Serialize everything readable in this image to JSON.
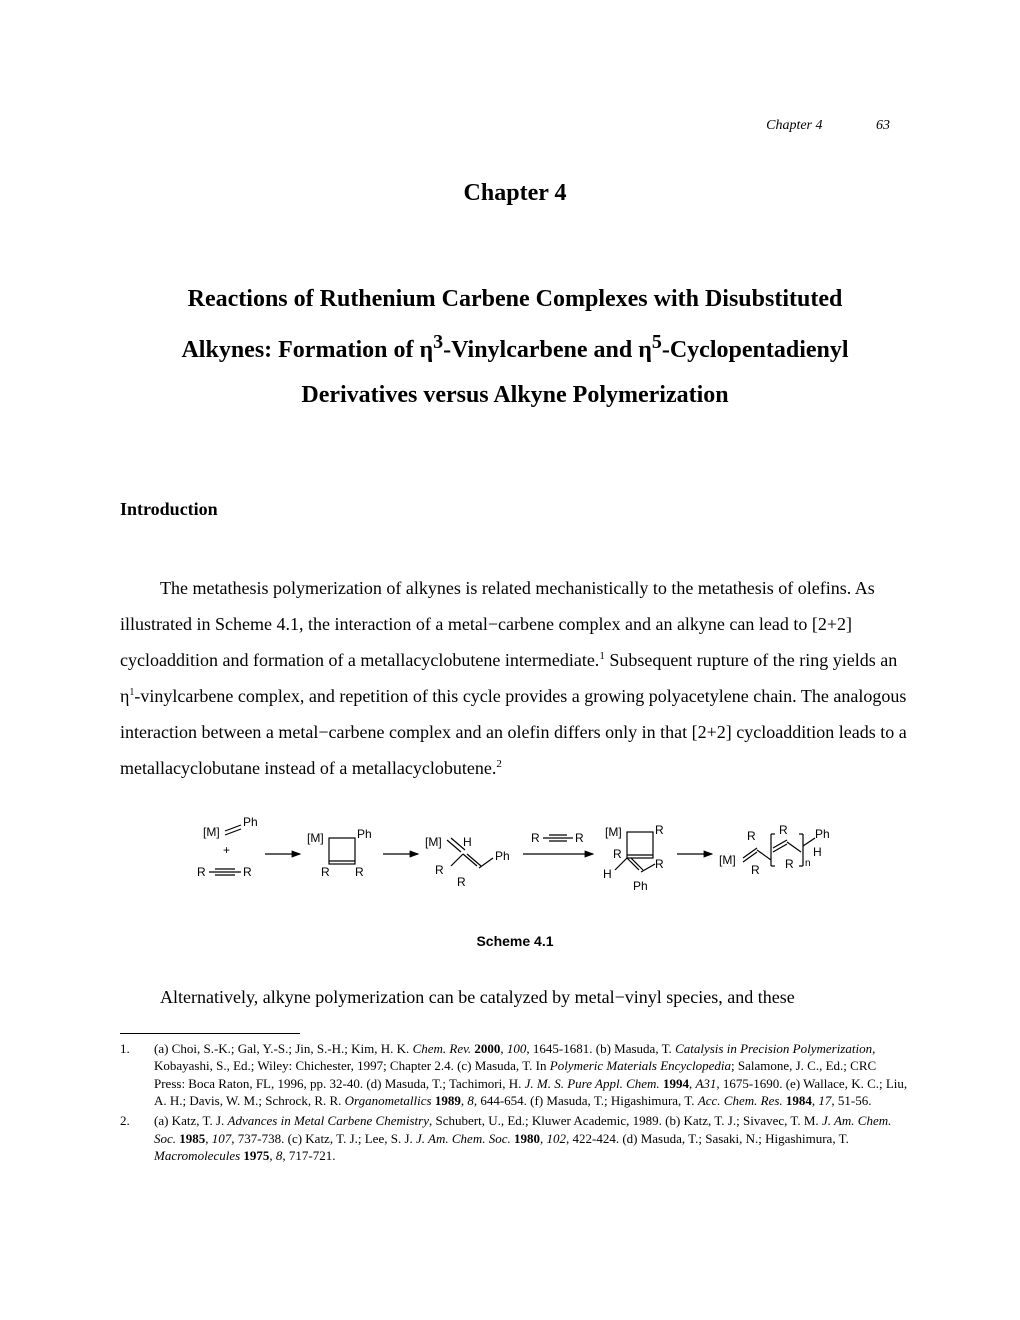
{
  "header": {
    "chapter_label": "Chapter 4",
    "page_number": "63"
  },
  "chapter_heading": "Chapter 4",
  "title": {
    "line1": "Reactions of Ruthenium Carbene Complexes with Disubstituted",
    "line2_pre": "Alkynes: Formation of ",
    "line2_eta3": "η",
    "line2_sup3": "3",
    "line2_mid": "-Vinylcarbene and ",
    "line2_eta5": "η",
    "line2_sup5": "5",
    "line2_post": "-Cyclopentadienyl",
    "line3": "Derivatives versus Alkyne Polymerization"
  },
  "section_heading": "Introduction",
  "para1": {
    "t1": "The metathesis polymerization of alkynes is related mechanistically to the metathesis of olefins.  As illustrated in Scheme 4.1, the interaction of a metal−carbene complex and an alkyne can lead to [2+2] cycloaddition and formation of a metallacyclobutene intermediate.",
    "sup1": "1",
    "t2": "  Subsequent rupture of the ring yields an η",
    "sup_eta": "1",
    "t3": "-vinylcarbene complex, and repetition of this cycle provides a growing polyacetylene chain.  The analogous interaction between a metal−carbene complex and an olefin differs only in that [2+2] cycloaddition leads to a metallacyclobutane instead of a metallacyclobutene.",
    "sup2": "2"
  },
  "scheme": {
    "label": "Scheme 4.1",
    "labels": {
      "M": "[M]",
      "Ph": "Ph",
      "R": "R",
      "H": "H",
      "plus": "+",
      "n": "n"
    },
    "style": {
      "font_family": "Arial, Helvetica, sans-serif",
      "font_size": 12,
      "stroke": "#000000",
      "stroke_width": 1.2
    }
  },
  "para2": "Alternatively, alkyne polymerization can be catalyzed by metal−vinyl species, and these",
  "footnotes": {
    "fn1": {
      "num": "1.",
      "parts": [
        {
          "text": "(a) Choi, S.-K.; Gal, Y.-S.; Jin, S.-H.; Kim, H. K.  "
        },
        {
          "text": "Chem. Rev.",
          "ital": true
        },
        {
          "text": " "
        },
        {
          "text": "2000",
          "bold": true
        },
        {
          "text": ", "
        },
        {
          "text": "100",
          "ital": true
        },
        {
          "text": ", 1645-1681.  (b) Masuda, T.  "
        },
        {
          "text": "Catalysis in Precision Polymerization",
          "ital": true
        },
        {
          "text": ", Kobayashi, S., Ed.; Wiley: Chichester, 1997; Chapter 2.4.  (c) Masuda, T.  In "
        },
        {
          "text": "Polymeric Materials Encyclopedia",
          "ital": true
        },
        {
          "text": "; Salamone, J. C., Ed.; CRC Press: Boca Raton, FL, 1996, pp. 32-40.  (d) Masuda, T.; Tachimori, H.  "
        },
        {
          "text": "J. M. S. Pure Appl. Chem.",
          "ital": true
        },
        {
          "text": " "
        },
        {
          "text": "1994",
          "bold": true
        },
        {
          "text": ", "
        },
        {
          "text": "A31",
          "ital": true
        },
        {
          "text": ", 1675-1690.  (e) Wallace, K. C.; Liu, A. H.; Davis, W. M.; Schrock, R. R.  "
        },
        {
          "text": "Organometallics",
          "ital": true
        },
        {
          "text": " "
        },
        {
          "text": "1989",
          "bold": true
        },
        {
          "text": ", "
        },
        {
          "text": "8",
          "ital": true
        },
        {
          "text": ", 644-654.  (f) Masuda, T.; Higashimura, T.  "
        },
        {
          "text": "Acc. Chem. Res.",
          "ital": true
        },
        {
          "text": " "
        },
        {
          "text": "1984",
          "bold": true
        },
        {
          "text": ", "
        },
        {
          "text": "17",
          "ital": true
        },
        {
          "text": ", 51-56."
        }
      ]
    },
    "fn2": {
      "num": "2.",
      "parts": [
        {
          "text": "(a) Katz, T. J.  "
        },
        {
          "text": "Advances in Metal Carbene Chemistry",
          "ital": true
        },
        {
          "text": ", Schubert, U., Ed.; Kluwer Academic, 1989.  (b) Katz, T. J.; Sivavec, T. M.  "
        },
        {
          "text": "J. Am. Chem. Soc.",
          "ital": true
        },
        {
          "text": " "
        },
        {
          "text": "1985",
          "bold": true
        },
        {
          "text": ", "
        },
        {
          "text": "107",
          "ital": true
        },
        {
          "text": ", 737-738.  (c) Katz, T. J.; Lee, S. J.  "
        },
        {
          "text": "J. Am. Chem. Soc.",
          "ital": true
        },
        {
          "text": " "
        },
        {
          "text": "1980",
          "bold": true
        },
        {
          "text": ", "
        },
        {
          "text": "102",
          "ital": true
        },
        {
          "text": ", 422-424.  (d) Masuda, T.; Sasaki, N.; Higashimura, T.  "
        },
        {
          "text": "Macromolecules",
          "ital": true
        },
        {
          "text": " "
        },
        {
          "text": "1975",
          "bold": true
        },
        {
          "text": ", "
        },
        {
          "text": "8",
          "ital": true
        },
        {
          "text": ", 717-721."
        }
      ]
    }
  },
  "colors": {
    "background": "#ffffff",
    "text": "#000000"
  },
  "typography": {
    "body_font": "Times New Roman",
    "scheme_font": "Arial",
    "body_size_pt": 13,
    "title_size_pt": 18,
    "footnote_size_pt": 10
  }
}
